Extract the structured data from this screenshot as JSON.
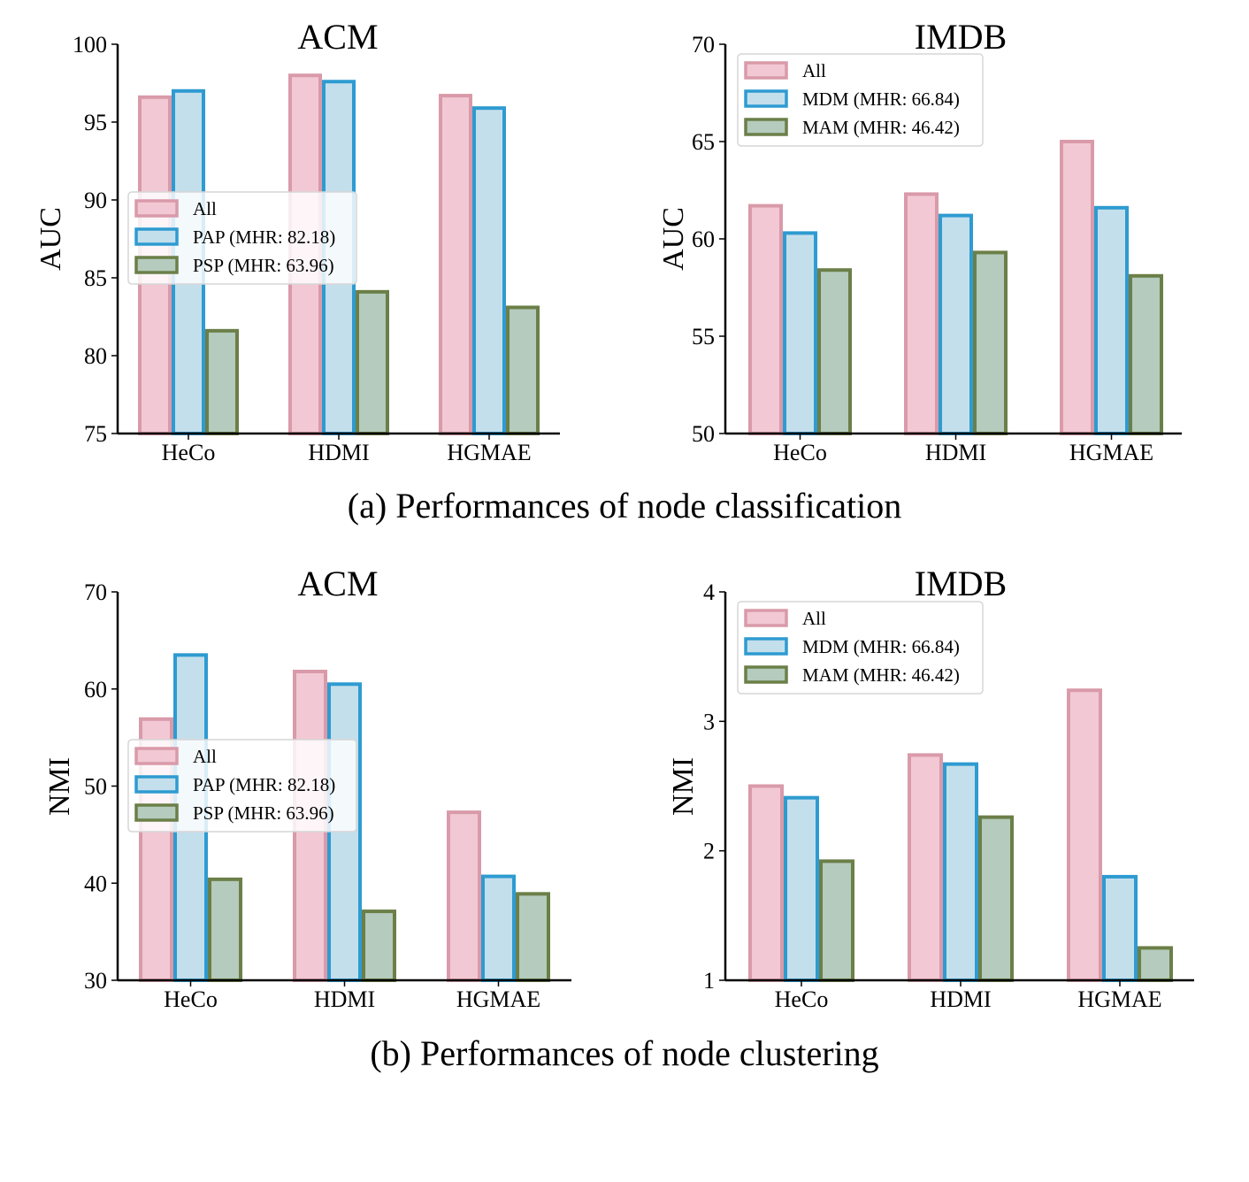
{
  "figure": {
    "caption_a": "(a) Performances of node classification",
    "caption_b": "(b) Performances of node clustering"
  },
  "colors": {
    "all_fill": "#f2c8d4",
    "all_edge": "#d99aa9",
    "blue_fill": "#c4dfec",
    "blue_edge": "#2e9bd1",
    "green_fill": "#b4cbbd",
    "green_edge": "#6b7f48"
  },
  "chart_data": [
    {
      "id": "acm-auc",
      "type": "bar",
      "title": "ACM",
      "ylabel": "AUC",
      "xlabel": "",
      "ylim": [
        75,
        100
      ],
      "yticks": [
        75,
        80,
        85,
        90,
        95,
        100
      ],
      "categories": [
        "HeCo",
        "HDMI",
        "HGMAE"
      ],
      "series": [
        {
          "name": "All",
          "values": [
            96.6,
            98.0,
            96.7
          ]
        },
        {
          "name": "PAP (MHR: 82.18)",
          "values": [
            97.0,
            97.6,
            95.9
          ]
        },
        {
          "name": "PSP (MHR: 63.96)",
          "values": [
            81.6,
            84.1,
            83.1
          ]
        }
      ],
      "legend": "center-left"
    },
    {
      "id": "imdb-auc",
      "type": "bar",
      "title": "IMDB",
      "ylabel": "AUC",
      "xlabel": "",
      "ylim": [
        50,
        70
      ],
      "yticks": [
        50,
        55,
        60,
        65,
        70
      ],
      "categories": [
        "HeCo",
        "HDMI",
        "HGMAE"
      ],
      "series": [
        {
          "name": "All",
          "values": [
            61.7,
            62.3,
            65.0
          ]
        },
        {
          "name": "MDM (MHR: 66.84)",
          "values": [
            60.3,
            61.2,
            61.6
          ]
        },
        {
          "name": "MAM (MHR: 46.42)",
          "values": [
            58.4,
            59.3,
            58.1
          ]
        }
      ],
      "legend": "top-left"
    },
    {
      "id": "acm-nmi",
      "type": "bar",
      "title": "ACM",
      "ylabel": "NMI",
      "xlabel": "",
      "ylim": [
        30,
        70
      ],
      "yticks": [
        30,
        40,
        50,
        60,
        70
      ],
      "categories": [
        "HeCo",
        "HDMI",
        "HGMAE"
      ],
      "series": [
        {
          "name": "All",
          "values": [
            56.9,
            61.8,
            47.3
          ]
        },
        {
          "name": "PAP (MHR: 82.18)",
          "values": [
            63.5,
            60.5,
            40.7
          ]
        },
        {
          "name": "PSP (MHR: 63.96)",
          "values": [
            40.4,
            37.1,
            38.9
          ]
        }
      ],
      "legend": "center-left"
    },
    {
      "id": "imdb-nmi",
      "type": "bar",
      "title": "IMDB",
      "ylabel": "NMI",
      "xlabel": "",
      "ylim": [
        1,
        4
      ],
      "yticks": [
        1,
        2,
        3,
        4
      ],
      "categories": [
        "HeCo",
        "HDMI",
        "HGMAE"
      ],
      "series": [
        {
          "name": "All",
          "values": [
            2.5,
            2.74,
            3.24
          ]
        },
        {
          "name": "MDM (MHR: 66.84)",
          "values": [
            2.41,
            2.67,
            1.8
          ]
        },
        {
          "name": "MAM (MHR: 46.42)",
          "values": [
            1.92,
            2.26,
            1.25
          ]
        }
      ],
      "legend": "top-left"
    }
  ]
}
